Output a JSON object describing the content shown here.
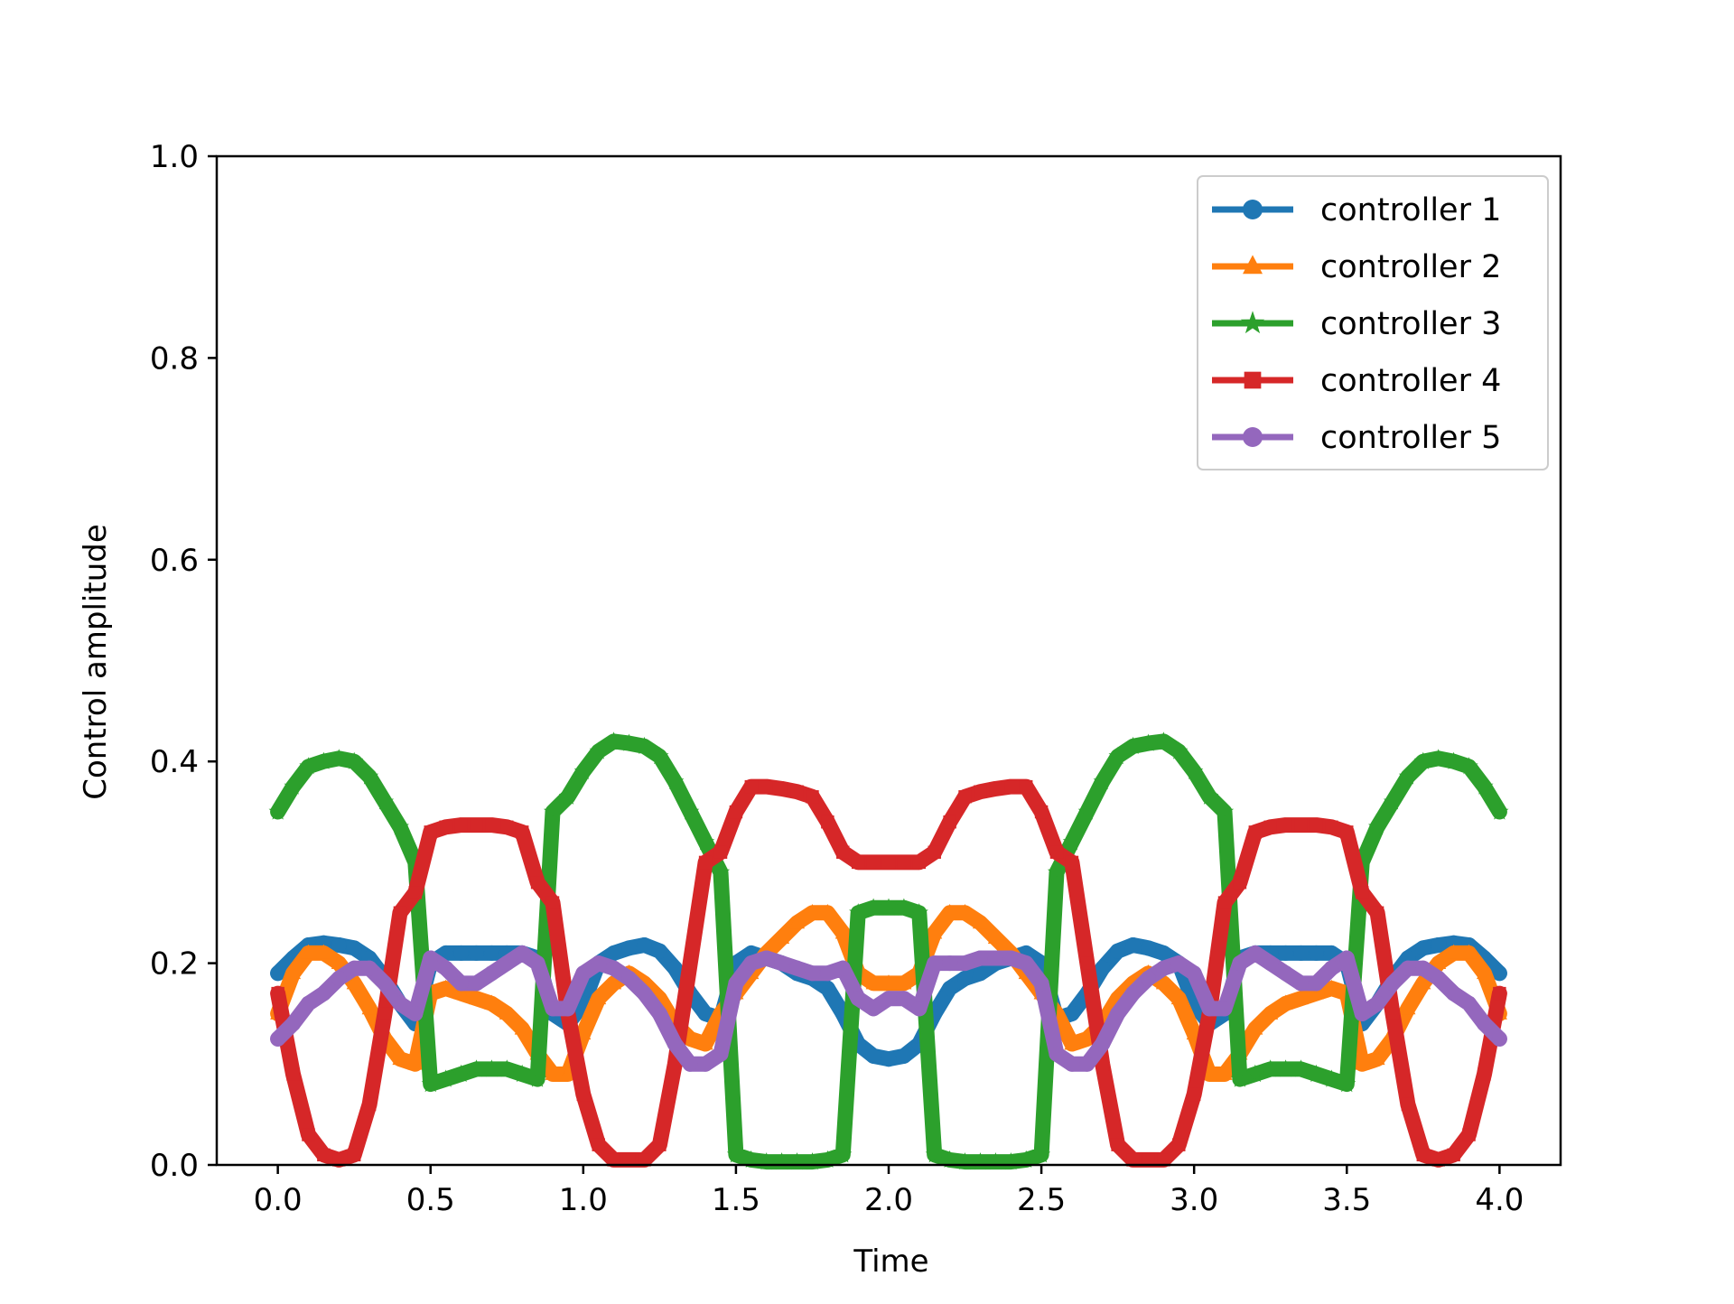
{
  "chart_data": {
    "type": "line",
    "title": "",
    "xlabel": "Time",
    "ylabel": "Control amplitude",
    "xlim": [
      -0.2,
      4.2
    ],
    "ylim": [
      0.0,
      1.0
    ],
    "xticks": [
      0.0,
      0.5,
      1.0,
      1.5,
      2.0,
      2.5,
      3.0,
      3.5,
      4.0
    ],
    "xtick_labels": [
      "0.0",
      "0.5",
      "1.0",
      "1.5",
      "2.0",
      "2.5",
      "3.0",
      "3.5",
      "4.0"
    ],
    "yticks": [
      0.0,
      0.2,
      0.4,
      0.6,
      0.8,
      1.0
    ],
    "ytick_labels": [
      "0.0",
      "0.2",
      "0.4",
      "0.6",
      "0.8",
      "1.0"
    ],
    "grid": false,
    "legend_position": "top-right",
    "x": [
      0.0,
      0.05,
      0.1,
      0.15,
      0.2,
      0.25,
      0.3,
      0.35,
      0.4,
      0.45,
      0.5,
      0.55,
      0.6,
      0.65,
      0.7,
      0.75,
      0.8,
      0.85,
      0.9,
      0.95,
      1.0,
      1.05,
      1.1,
      1.15,
      1.2,
      1.25,
      1.3,
      1.35,
      1.4,
      1.45,
      1.5,
      1.55,
      1.6,
      1.65,
      1.7,
      1.75,
      1.8,
      1.85,
      1.9,
      1.95,
      2.0,
      2.05,
      2.1,
      2.15,
      2.2,
      2.25,
      2.3,
      2.35,
      2.4,
      2.45,
      2.5,
      2.55,
      2.6,
      2.65,
      2.7,
      2.75,
      2.8,
      2.85,
      2.9,
      2.95,
      3.0,
      3.05,
      3.1,
      3.15,
      3.2,
      3.25,
      3.3,
      3.35,
      3.4,
      3.45,
      3.5,
      3.55,
      3.6,
      3.65,
      3.7,
      3.75,
      3.8,
      3.85,
      3.9,
      3.95,
      4.0
    ],
    "series": [
      {
        "name": "controller 1",
        "color": "#1f77b4",
        "marker": "circle",
        "values": [
          0.19,
          0.205,
          0.218,
          0.22,
          0.218,
          0.215,
          0.205,
          0.185,
          0.16,
          0.14,
          0.2,
          0.21,
          0.21,
          0.21,
          0.21,
          0.21,
          0.21,
          0.205,
          0.15,
          0.14,
          0.16,
          0.2,
          0.21,
          0.215,
          0.218,
          0.212,
          0.195,
          0.17,
          0.15,
          0.145,
          0.2,
          0.21,
          0.205,
          0.2,
          0.19,
          0.185,
          0.175,
          0.15,
          0.12,
          0.108,
          0.105,
          0.108,
          0.12,
          0.15,
          0.175,
          0.185,
          0.19,
          0.2,
          0.205,
          0.21,
          0.2,
          0.145,
          0.15,
          0.17,
          0.195,
          0.212,
          0.218,
          0.215,
          0.21,
          0.2,
          0.16,
          0.14,
          0.15,
          0.205,
          0.21,
          0.21,
          0.21,
          0.21,
          0.21,
          0.21,
          0.2,
          0.14,
          0.16,
          0.185,
          0.205,
          0.215,
          0.218,
          0.22,
          0.218,
          0.205,
          0.19
        ]
      },
      {
        "name": "controller 2",
        "color": "#ff7f0e",
        "marker": "triangle",
        "values": [
          0.15,
          0.19,
          0.21,
          0.21,
          0.2,
          0.18,
          0.155,
          0.125,
          0.105,
          0.1,
          0.17,
          0.175,
          0.17,
          0.165,
          0.16,
          0.15,
          0.135,
          0.11,
          0.09,
          0.09,
          0.13,
          0.165,
          0.18,
          0.19,
          0.18,
          0.165,
          0.14,
          0.125,
          0.12,
          0.15,
          0.17,
          0.19,
          0.21,
          0.225,
          0.24,
          0.25,
          0.25,
          0.23,
          0.19,
          0.18,
          0.18,
          0.18,
          0.19,
          0.23,
          0.25,
          0.25,
          0.24,
          0.225,
          0.21,
          0.19,
          0.17,
          0.15,
          0.12,
          0.125,
          0.14,
          0.165,
          0.18,
          0.19,
          0.18,
          0.165,
          0.13,
          0.09,
          0.09,
          0.11,
          0.135,
          0.15,
          0.16,
          0.165,
          0.17,
          0.175,
          0.17,
          0.1,
          0.105,
          0.125,
          0.155,
          0.18,
          0.2,
          0.21,
          0.21,
          0.19,
          0.15
        ]
      },
      {
        "name": "controller 3",
        "color": "#2ca02c",
        "marker": "star",
        "values": [
          0.35,
          0.375,
          0.395,
          0.4,
          0.403,
          0.4,
          0.385,
          0.36,
          0.335,
          0.3,
          0.08,
          0.085,
          0.09,
          0.095,
          0.095,
          0.095,
          0.09,
          0.085,
          0.35,
          0.365,
          0.39,
          0.41,
          0.42,
          0.418,
          0.415,
          0.405,
          0.38,
          0.35,
          0.32,
          0.29,
          0.01,
          0.005,
          0.003,
          0.003,
          0.003,
          0.003,
          0.005,
          0.01,
          0.25,
          0.255,
          0.255,
          0.255,
          0.25,
          0.01,
          0.005,
          0.003,
          0.003,
          0.003,
          0.003,
          0.005,
          0.01,
          0.29,
          0.32,
          0.35,
          0.38,
          0.405,
          0.415,
          0.418,
          0.42,
          0.41,
          0.39,
          0.365,
          0.35,
          0.085,
          0.09,
          0.095,
          0.095,
          0.095,
          0.09,
          0.085,
          0.08,
          0.3,
          0.335,
          0.36,
          0.385,
          0.4,
          0.403,
          0.4,
          0.395,
          0.375,
          0.35
        ]
      },
      {
        "name": "controller 4",
        "color": "#d62728",
        "marker": "square",
        "values": [
          0.17,
          0.09,
          0.03,
          0.01,
          0.005,
          0.01,
          0.06,
          0.15,
          0.25,
          0.27,
          0.33,
          0.335,
          0.337,
          0.337,
          0.337,
          0.335,
          0.33,
          0.28,
          0.26,
          0.15,
          0.07,
          0.02,
          0.005,
          0.005,
          0.005,
          0.02,
          0.1,
          0.2,
          0.3,
          0.31,
          0.35,
          0.375,
          0.375,
          0.373,
          0.37,
          0.365,
          0.34,
          0.31,
          0.3,
          0.3,
          0.3,
          0.3,
          0.3,
          0.31,
          0.34,
          0.365,
          0.37,
          0.373,
          0.375,
          0.375,
          0.35,
          0.31,
          0.3,
          0.2,
          0.1,
          0.02,
          0.005,
          0.005,
          0.005,
          0.02,
          0.07,
          0.15,
          0.26,
          0.28,
          0.33,
          0.335,
          0.337,
          0.337,
          0.337,
          0.335,
          0.33,
          0.27,
          0.25,
          0.15,
          0.06,
          0.01,
          0.005,
          0.01,
          0.03,
          0.09,
          0.17
        ]
      },
      {
        "name": "controller 5",
        "color": "#9467bd",
        "marker": "circle",
        "values": [
          0.125,
          0.14,
          0.16,
          0.17,
          0.185,
          0.195,
          0.195,
          0.18,
          0.16,
          0.15,
          0.205,
          0.195,
          0.18,
          0.18,
          0.19,
          0.2,
          0.21,
          0.2,
          0.155,
          0.155,
          0.19,
          0.2,
          0.195,
          0.185,
          0.17,
          0.15,
          0.12,
          0.1,
          0.1,
          0.11,
          0.18,
          0.2,
          0.205,
          0.2,
          0.195,
          0.19,
          0.19,
          0.195,
          0.165,
          0.155,
          0.165,
          0.165,
          0.155,
          0.2,
          0.2,
          0.2,
          0.205,
          0.205,
          0.205,
          0.2,
          0.18,
          0.11,
          0.1,
          0.1,
          0.12,
          0.15,
          0.17,
          0.185,
          0.195,
          0.2,
          0.19,
          0.155,
          0.155,
          0.2,
          0.21,
          0.2,
          0.19,
          0.18,
          0.18,
          0.195,
          0.205,
          0.15,
          0.16,
          0.18,
          0.195,
          0.195,
          0.185,
          0.17,
          0.16,
          0.14,
          0.125
        ]
      }
    ]
  }
}
